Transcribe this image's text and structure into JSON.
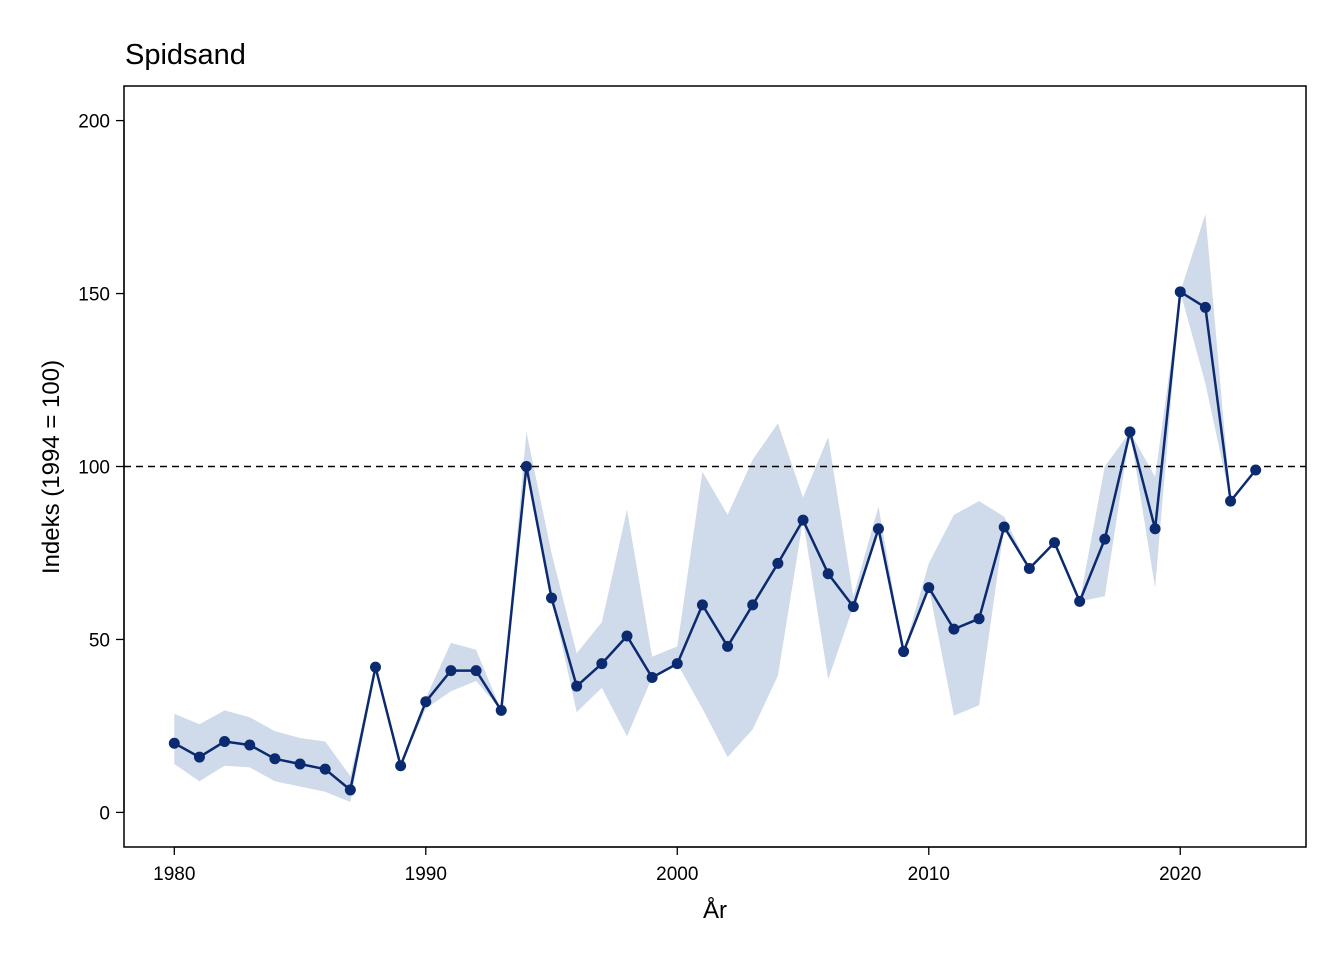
{
  "chart_data": {
    "type": "line",
    "title": "Spidsand",
    "xlabel": "År",
    "ylabel": "Indeks (1994 = 100)",
    "xlim": [
      1978,
      2025
    ],
    "ylim": [
      -10,
      210
    ],
    "xticks": [
      1980,
      1990,
      2000,
      2010,
      2020
    ],
    "yticks": [
      0,
      50,
      100,
      150,
      200
    ],
    "reference_line": 100,
    "grid": false,
    "colors": {
      "line": "#0b2a6f",
      "band": "#cfdaea",
      "reference": "#000000"
    },
    "x": [
      1980,
      1981,
      1982,
      1983,
      1984,
      1985,
      1986,
      1987,
      1988,
      1989,
      1990,
      1991,
      1992,
      1993,
      1994,
      1995,
      1996,
      1997,
      1998,
      1999,
      2000,
      2001,
      2002,
      2003,
      2004,
      2005,
      2006,
      2007,
      2008,
      2009,
      2010,
      2011,
      2012,
      2013,
      2014,
      2015,
      2016,
      2017,
      2018,
      2019,
      2020,
      2021,
      2022,
      2023
    ],
    "series": [
      {
        "values": [
          20,
          16,
          20.5,
          19.5,
          15.5,
          14,
          12.5,
          6.5,
          42,
          13.5,
          32,
          41,
          41,
          29.5,
          100,
          62,
          36.5,
          43,
          51,
          39,
          43,
          60,
          48,
          60,
          72,
          84.5,
          69,
          59.5,
          82,
          46.5,
          65,
          53,
          56,
          82.5,
          70.5,
          78,
          61,
          79,
          110,
          82,
          150.5,
          146,
          90,
          99
        ],
        "lower": [
          14,
          9,
          13.5,
          13,
          9,
          7.5,
          6,
          3,
          42,
          13.5,
          30,
          35,
          38,
          29.5,
          100,
          62,
          29,
          36,
          22,
          39,
          43,
          30,
          16,
          24,
          39.5,
          84.5,
          38.5,
          59.5,
          82,
          46.5,
          65,
          28,
          31,
          82.5,
          70.5,
          78,
          61,
          62.5,
          110,
          65,
          150.5,
          124,
          90,
          99
        ],
        "upper": [
          28.5,
          25.5,
          29.5,
          27.5,
          23.5,
          21.5,
          20.5,
          10.5,
          42,
          13.5,
          33,
          49,
          47,
          29.5,
          110,
          75,
          46,
          55,
          87.5,
          45,
          48,
          98.5,
          86,
          102,
          112.5,
          91,
          108.5,
          62.5,
          88.5,
          46.5,
          72,
          86,
          90,
          85.5,
          70.5,
          78,
          61,
          100,
          110,
          97,
          150.5,
          173,
          90,
          99
        ]
      }
    ]
  }
}
